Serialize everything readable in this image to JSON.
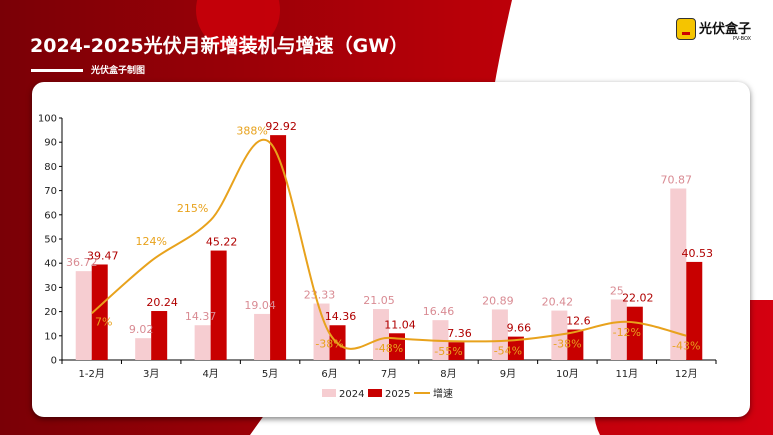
{
  "header": {
    "title": "2024-2025光伏月新增装机与增速（GW）",
    "subtitle": "光伏盒子制图"
  },
  "logo": {
    "name": "光伏盒子",
    "sub": "PV-BOX"
  },
  "colors": {
    "s2024": "#f6cdd1",
    "s2025": "#c80000",
    "growth": "#e8a21c",
    "label2024": "#d98b93",
    "label2025": "#b00000"
  },
  "chart_data": {
    "type": "bar",
    "title": "2024-2025光伏月新增装机与增速（GW）",
    "categories": [
      "1-2月",
      "3月",
      "4月",
      "5月",
      "6月",
      "7月",
      "8月",
      "9月",
      "10月",
      "11月",
      "12月"
    ],
    "ylim": [
      0,
      100
    ],
    "yticks": [
      0,
      10,
      20,
      30,
      40,
      50,
      60,
      70,
      80,
      90,
      100
    ],
    "grid": false,
    "legend_position": "bottom",
    "series": [
      {
        "name": "2024",
        "type": "bar",
        "values": [
          36.72,
          9.02,
          14.37,
          19.04,
          23.33,
          21.05,
          16.46,
          20.89,
          20.42,
          25,
          70.87
        ]
      },
      {
        "name": "2025",
        "type": "bar",
        "values": [
          39.47,
          20.24,
          45.22,
          92.92,
          14.36,
          11.04,
          7.36,
          9.66,
          12.6,
          22.02,
          40.53
        ]
      },
      {
        "name": "增速",
        "type": "line",
        "axis": "secondary-hidden",
        "values": [
          7,
          124,
          215,
          388,
          -38,
          -48,
          -55,
          -54,
          -38,
          -12,
          -43
        ],
        "labels": [
          "7%",
          "124%",
          "215%",
          "388%",
          "-38%",
          "-48%",
          "-55%",
          "-54%",
          "-38%",
          "-12%",
          "-43%"
        ]
      }
    ]
  }
}
